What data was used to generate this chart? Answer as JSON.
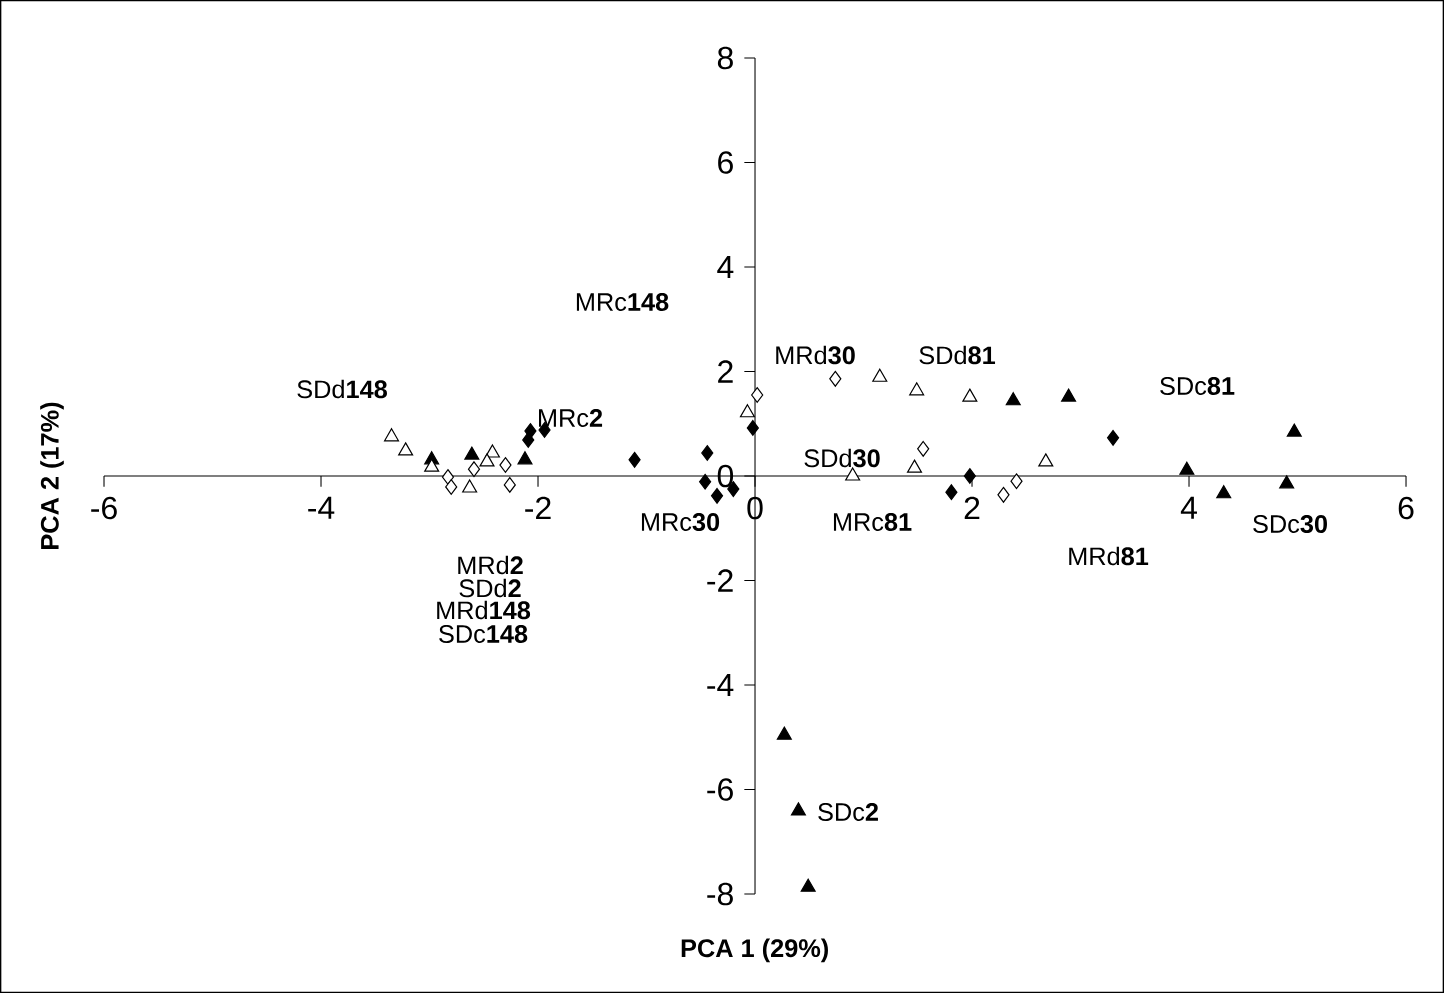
{
  "chart_data": {
    "type": "scatter",
    "xlabel": "PCA 1 (29%)",
    "ylabel": "PCA 2 (17%)",
    "xlim": [
      -6,
      6
    ],
    "ylim": [
      -8,
      8
    ],
    "xticks": [
      -6,
      -4,
      -2,
      0,
      2,
      4,
      6
    ],
    "yticks": [
      -8,
      -6,
      -4,
      -2,
      0,
      2,
      4,
      6,
      8
    ],
    "grid": false,
    "series": [
      {
        "marker": "triangle",
        "color": "#000000",
        "x": [
          -2.61,
          -2.12,
          -2.98,
          0.27,
          0.4,
          0.49,
          2.38,
          2.89,
          4.97,
          3.98,
          4.32,
          4.9
        ],
        "values": [
          0.4,
          0.31,
          0.31,
          -4.96,
          -6.41,
          -7.87,
          1.44,
          1.51,
          0.84,
          0.11,
          -0.34,
          -0.15
        ]
      },
      {
        "marker": "triangle",
        "color": "#ffffff",
        "x": [
          -3.35,
          -3.22,
          -2.98,
          1.15,
          1.49,
          1.98,
          0.9,
          1.47,
          2.68,
          -0.07
        ],
        "values": [
          0.75,
          0.48,
          0.17,
          1.89,
          1.63,
          1.51,
          0.0,
          0.15,
          0.27,
          1.21
        ]
      },
      {
        "marker": "triangle",
        "color": "#ffffff",
        "x": [
          -2.42,
          -2.47,
          -2.63
        ],
        "values": [
          0.44,
          0.27,
          -0.23
        ]
      },
      {
        "marker": "diamond",
        "color": "#000000",
        "x": [
          -2.07,
          -1.94,
          -2.09,
          -1.11,
          -0.44,
          -0.02,
          -0.46,
          -0.35,
          -0.2,
          1.98,
          1.81,
          3.3
        ],
        "values": [
          0.86,
          0.88,
          0.69,
          0.31,
          0.44,
          0.92,
          -0.11,
          -0.38,
          -0.25,
          0.0,
          -0.31,
          0.73
        ]
      },
      {
        "marker": "diamond",
        "color": "#ffffff",
        "x": [
          -2.59,
          -2.83,
          -2.8,
          -2.26,
          -2.3,
          0.02,
          0.74,
          1.55,
          2.41,
          2.29
        ],
        "values": [
          0.13,
          -0.02,
          -0.21,
          -0.17,
          0.21,
          1.55,
          1.86,
          0.52,
          -0.1,
          -0.36
        ]
      }
    ],
    "annotations": [
      "MRc**148**",
      "SDd**148**",
      "MRc**2**",
      "MRd**30**",
      "SDd**81**",
      "SDc**81**",
      "SDd**30**",
      "MRc**30**",
      "MRc**81**",
      "MRd**81**",
      "SDc**30**",
      "SDc**2**",
      "MRd**2**",
      "SDd**2**",
      "MRd**148**",
      "SDc**148**"
    ]
  }
}
